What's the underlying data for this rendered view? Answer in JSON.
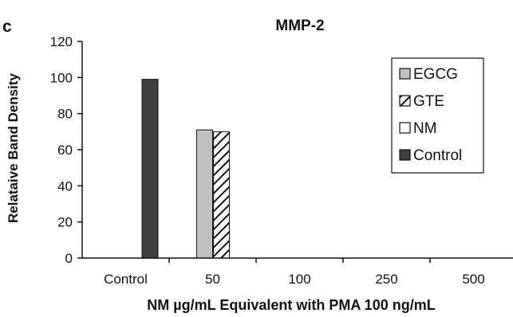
{
  "panel_label": "c",
  "chart_data": {
    "type": "bar",
    "title": "MMP-2",
    "xlabel": "NM µg/mL Equivalent with PMA 100 ng/mL",
    "ylabel": "Relataive Band Density",
    "categories": [
      "Control",
      "50",
      "100",
      "250",
      "500"
    ],
    "ylim": [
      0,
      120
    ],
    "yticks": [
      0,
      20,
      40,
      60,
      80,
      100,
      120
    ],
    "grid": false,
    "legend_position": "top-right",
    "legend_order": [
      "EGCG",
      "GTE",
      "NM",
      "Control"
    ],
    "series": [
      {
        "name": "Control",
        "color": "#404040",
        "pattern": "solid",
        "values": [
          99,
          null,
          null,
          null,
          null
        ]
      },
      {
        "name": "EGCG",
        "color": "#c0c0c0",
        "pattern": "solid",
        "values": [
          null,
          71,
          null,
          null,
          null
        ]
      },
      {
        "name": "GTE",
        "color": "#ffffff",
        "pattern": "hatch",
        "values": [
          null,
          70,
          null,
          null,
          null
        ]
      },
      {
        "name": "NM",
        "color": "#ffffff",
        "pattern": "solid",
        "values": [
          null,
          null,
          null,
          null,
          null
        ]
      }
    ]
  }
}
